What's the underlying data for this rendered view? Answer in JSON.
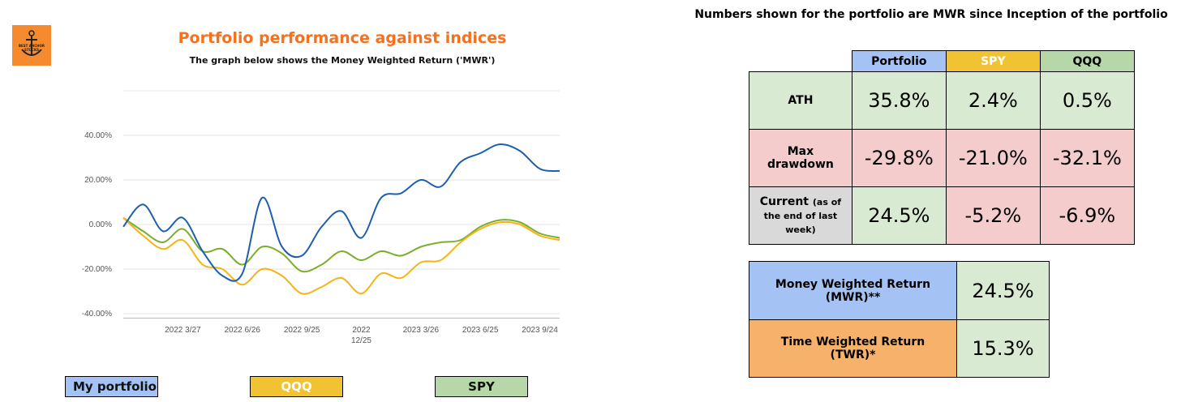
{
  "logo_text": "BEST ANCHOR STOCKS",
  "chart_data": {
    "type": "line",
    "title": "Portfolio performance against indices",
    "subtitle": "The graph below shows the Money Weighted Return ('MWR')",
    "categories": [
      null,
      null,
      null,
      "2022 3/27",
      null,
      null,
      "2022 6/26",
      null,
      null,
      "2022 9/25",
      null,
      null,
      "2022 12/25",
      null,
      null,
      "2023 3/26",
      null,
      null,
      "2023 6/25",
      null,
      null,
      "2023 9/24",
      null
    ],
    "series": [
      {
        "name": "My portfolio",
        "color": "#1c5fae",
        "legend_color": "#a4c2f4",
        "values": [
          -1,
          9,
          -3,
          3,
          -12,
          -23,
          -22,
          12,
          -10,
          -14,
          -1,
          6,
          -6,
          12,
          14,
          20,
          17,
          28,
          32,
          36,
          33,
          25,
          24
        ]
      },
      {
        "name": "QQQ",
        "color": "#f5b316",
        "legend_color": "#f1c232",
        "values": [
          3,
          -5,
          -11,
          -7,
          -18,
          -20,
          -27,
          -20,
          -23,
          -31,
          -28,
          -24,
          -31,
          -22,
          -24,
          -17,
          -16,
          -8,
          -2,
          1,
          0,
          -5,
          -7
        ]
      },
      {
        "name": "SPY",
        "color": "#7cae2c",
        "legend_color": "#b6d7a8",
        "values": [
          3,
          -3,
          -8,
          -2,
          -12,
          -11,
          -18,
          -10,
          -13,
          -21,
          -18,
          -12,
          -16,
          -12,
          -14,
          -10,
          -8,
          -7,
          -1,
          2,
          1,
          -4,
          -6
        ]
      }
    ],
    "ylim": [
      -42,
      60
    ],
    "yticks": [
      {
        "value": -40,
        "label": "-40.00%"
      },
      {
        "value": -20,
        "label": "-20.00%"
      },
      {
        "value": 0,
        "label": "0.00%"
      },
      {
        "value": 20,
        "label": "20.00%"
      },
      {
        "value": 40,
        "label": "40.00%"
      }
    ],
    "grid": true
  },
  "summary": {
    "heading": "Numbers shown for the portfolio are MWR since Inception of the portfolio",
    "columns": [
      "Portfolio",
      "SPY",
      "QQQ"
    ],
    "rows": [
      {
        "label": "ATH",
        "values": [
          "35.8%",
          "2.4%",
          "0.5%"
        ]
      },
      {
        "label": "Max drawdown",
        "values": [
          "-29.8%",
          "-21.0%",
          "-32.1%"
        ]
      },
      {
        "label": "Current",
        "note": "(as of the end of last week)",
        "values": [
          "24.5%",
          "-5.2%",
          "-6.9%"
        ]
      }
    ]
  },
  "returns": {
    "rows": [
      {
        "label": "Money Weighted Return (MWR)**",
        "value": "24.5%"
      },
      {
        "label": "Time Weighted Return (TWR)*",
        "value": "15.3%"
      }
    ]
  }
}
